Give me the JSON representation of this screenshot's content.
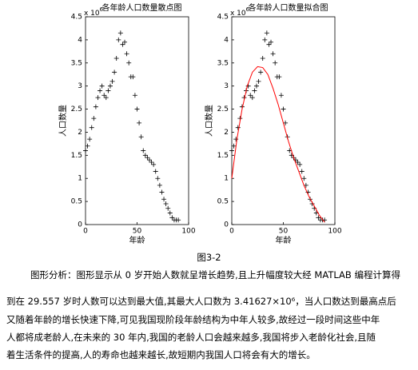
{
  "chart_data": [
    {
      "type": "scatter",
      "title": "各年龄人口数量散点图",
      "xlabel": "年龄",
      "ylabel": "人口数量",
      "exponent": {
        "base": "x 10",
        "power": "6"
      },
      "xlim": [
        0,
        100
      ],
      "ylim": [
        0,
        4.5
      ],
      "xticks": [
        0,
        50,
        100
      ],
      "yticks": [
        0,
        0.5,
        1,
        1.5,
        2,
        2.5,
        3,
        3.5,
        4,
        4.5
      ],
      "series": [
        {
          "style": "marker",
          "color": "#000000",
          "x": [
            0,
            2,
            4,
            6,
            8,
            10,
            12,
            14,
            16,
            18,
            20,
            22,
            24,
            26,
            28,
            30,
            32,
            34,
            36,
            38,
            40,
            42,
            44,
            46,
            48,
            50,
            52,
            54,
            56,
            58,
            60,
            62,
            64,
            66,
            68,
            70,
            72,
            74,
            76,
            78,
            80,
            82,
            84,
            86,
            88,
            90
          ],
          "values": [
            1.6,
            1.7,
            1.85,
            2.1,
            2.3,
            2.55,
            2.75,
            2.9,
            3.0,
            2.8,
            2.75,
            2.9,
            3.0,
            3.1,
            3.3,
            3.6,
            4.0,
            4.15,
            3.9,
            3.95,
            3.7,
            3.5,
            3.2,
            3.2,
            2.8,
            2.5,
            2.2,
            1.9,
            1.6,
            1.5,
            1.45,
            1.4,
            1.35,
            1.3,
            1.15,
            1.0,
            0.85,
            0.7,
            0.55,
            0.45,
            0.35,
            0.25,
            0.15,
            0.1,
            0.1,
            0.1
          ]
        }
      ]
    },
    {
      "type": "scatter",
      "title": "各年龄人口数量拟合图",
      "xlabel": "年龄",
      "ylabel": "人口数量",
      "exponent": {
        "base": "x 10",
        "power": "6"
      },
      "xlim": [
        0,
        100
      ],
      "ylim": [
        0,
        4.5
      ],
      "xticks": [
        0,
        50,
        100
      ],
      "yticks": [
        0,
        0.5,
        1,
        1.5,
        2,
        2.5,
        3,
        3.5,
        4,
        4.5
      ],
      "series": [
        {
          "style": "marker",
          "color": "#000000",
          "x": [
            0,
            2,
            4,
            6,
            8,
            10,
            12,
            14,
            16,
            18,
            20,
            22,
            24,
            26,
            28,
            30,
            32,
            34,
            36,
            38,
            40,
            42,
            44,
            46,
            48,
            50,
            52,
            54,
            56,
            58,
            60,
            62,
            64,
            66,
            68,
            70,
            72,
            74,
            76,
            78,
            80,
            82,
            84,
            86,
            88,
            90
          ],
          "values": [
            1.6,
            1.7,
            1.85,
            2.1,
            2.3,
            2.55,
            2.75,
            2.9,
            3.0,
            2.8,
            2.75,
            2.9,
            3.0,
            3.1,
            3.3,
            3.6,
            4.0,
            4.15,
            3.9,
            3.95,
            3.7,
            3.5,
            3.2,
            3.2,
            2.8,
            2.5,
            2.2,
            1.9,
            1.6,
            1.5,
            1.45,
            1.4,
            1.35,
            1.3,
            1.15,
            1.0,
            0.85,
            0.7,
            0.55,
            0.45,
            0.35,
            0.25,
            0.15,
            0.1,
            0.1,
            0.1
          ]
        },
        {
          "style": "line",
          "color": "#ff0000",
          "x": [
            0,
            5,
            10,
            15,
            20,
            25,
            30,
            35,
            40,
            45,
            50,
            55,
            60,
            65,
            70,
            75,
            80,
            85,
            90
          ],
          "values": [
            1.0,
            1.85,
            2.5,
            3.0,
            3.3,
            3.42,
            3.4,
            3.25,
            2.95,
            2.6,
            2.2,
            1.8,
            1.45,
            1.15,
            0.85,
            0.6,
            0.4,
            0.2,
            0.05
          ]
        }
      ]
    }
  ],
  "caption": "图3-2",
  "paragraph": [
    "图形分析：图形显示从 0 岁开始人数就呈增长趋势,且上升幅度较大经 MATLAB 编程计算得",
    "到在 29.557 岁时人数可以达到最大值,其最大人口数为 3.41627×10⁶，当人口数达到最高点后",
    "又随着年龄的增长快速下降,可见我国现阶段年龄结构为中年人较多,故经过一段时间这些中年",
    "人都将成老龄人,在未来的 30 年内,我国的老龄人口会越来越多,我国将步入老龄化社会,且随",
    "着生活条件的提高,人的寿命也越来越长,故短期内我国人口将会有大的增长。"
  ]
}
